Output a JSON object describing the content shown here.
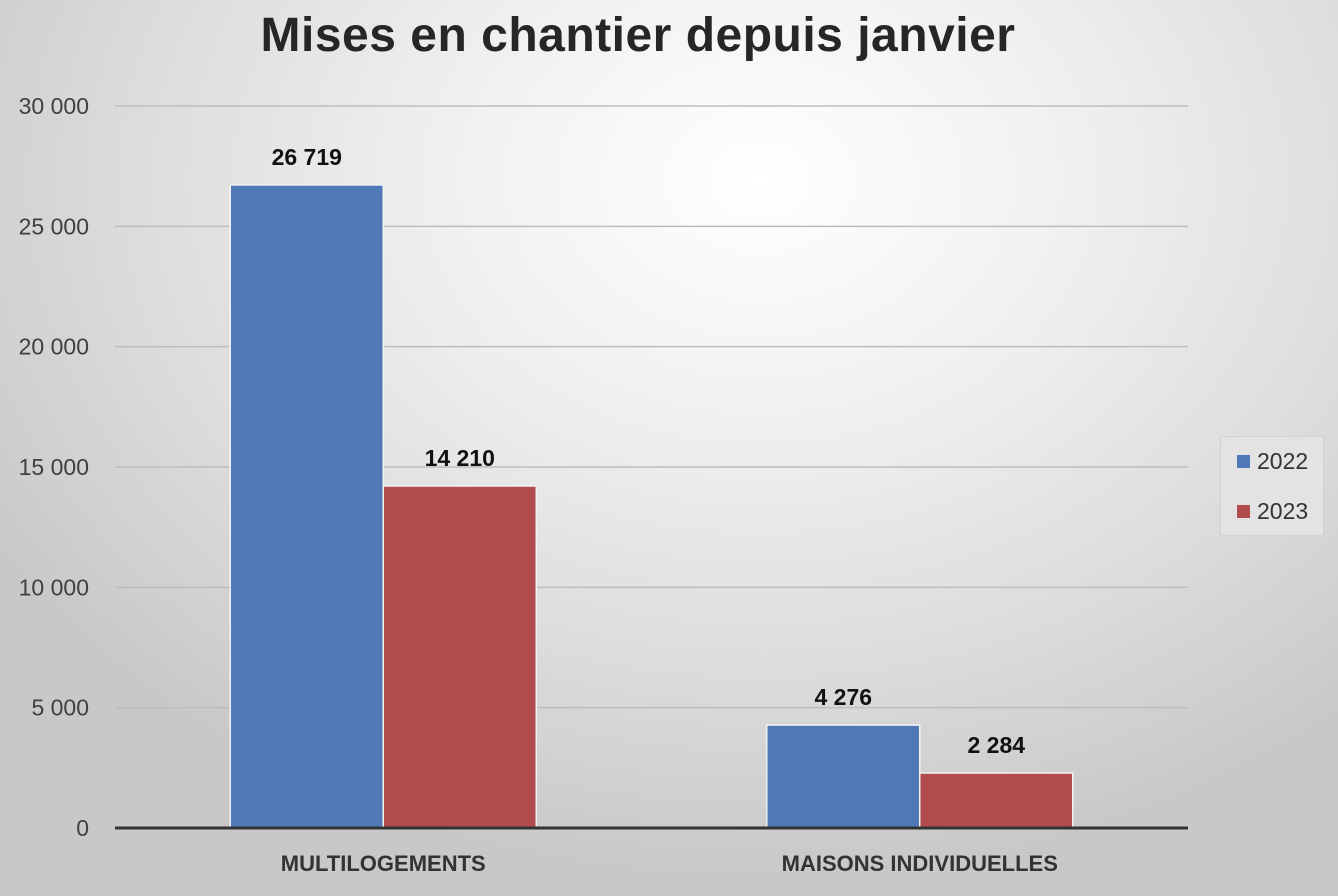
{
  "chart_data": {
    "type": "bar",
    "title": "Mises en chantier depuis janvier",
    "xlabel": "",
    "ylabel": "",
    "categories": [
      "MULTILOGEMENTS",
      "MAISONS INDIVIDUELLES"
    ],
    "series": [
      {
        "name": "2022",
        "values": [
          26719,
          4276
        ],
        "labels": [
          "26 719",
          "4 276"
        ],
        "color": "#4f78b7"
      },
      {
        "name": "2023",
        "values": [
          14210,
          2284
        ],
        "labels": [
          "14 210",
          "2 284"
        ],
        "color": "#b24c4c"
      }
    ],
    "ylim": [
      0,
      30000
    ],
    "yticks": [
      0,
      5000,
      10000,
      15000,
      20000,
      25000,
      30000
    ],
    "ytick_labels": [
      "0",
      "5 000",
      "10 000",
      "15 000",
      "20 000",
      "25 000",
      "30 000"
    ],
    "grid": true,
    "legend_position": "right"
  }
}
